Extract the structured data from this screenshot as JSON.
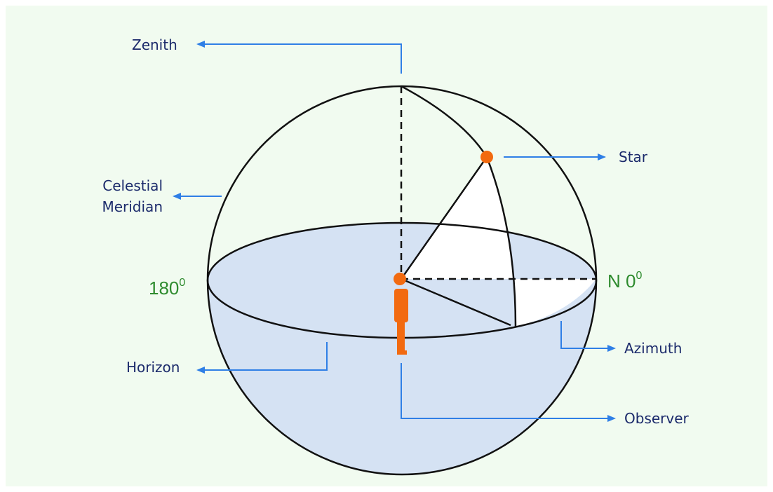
{
  "labels": {
    "zenith": "Zenith",
    "star": "Star",
    "meridian": [
      "Celestial",
      "Meridian"
    ],
    "horizon": "Horizon",
    "azimuth": "Azimuth",
    "observer": "Observer"
  },
  "directions": {
    "west": {
      "text": "180",
      "sup": "0"
    },
    "north": {
      "text": "N 0",
      "sup": "0"
    }
  }
}
